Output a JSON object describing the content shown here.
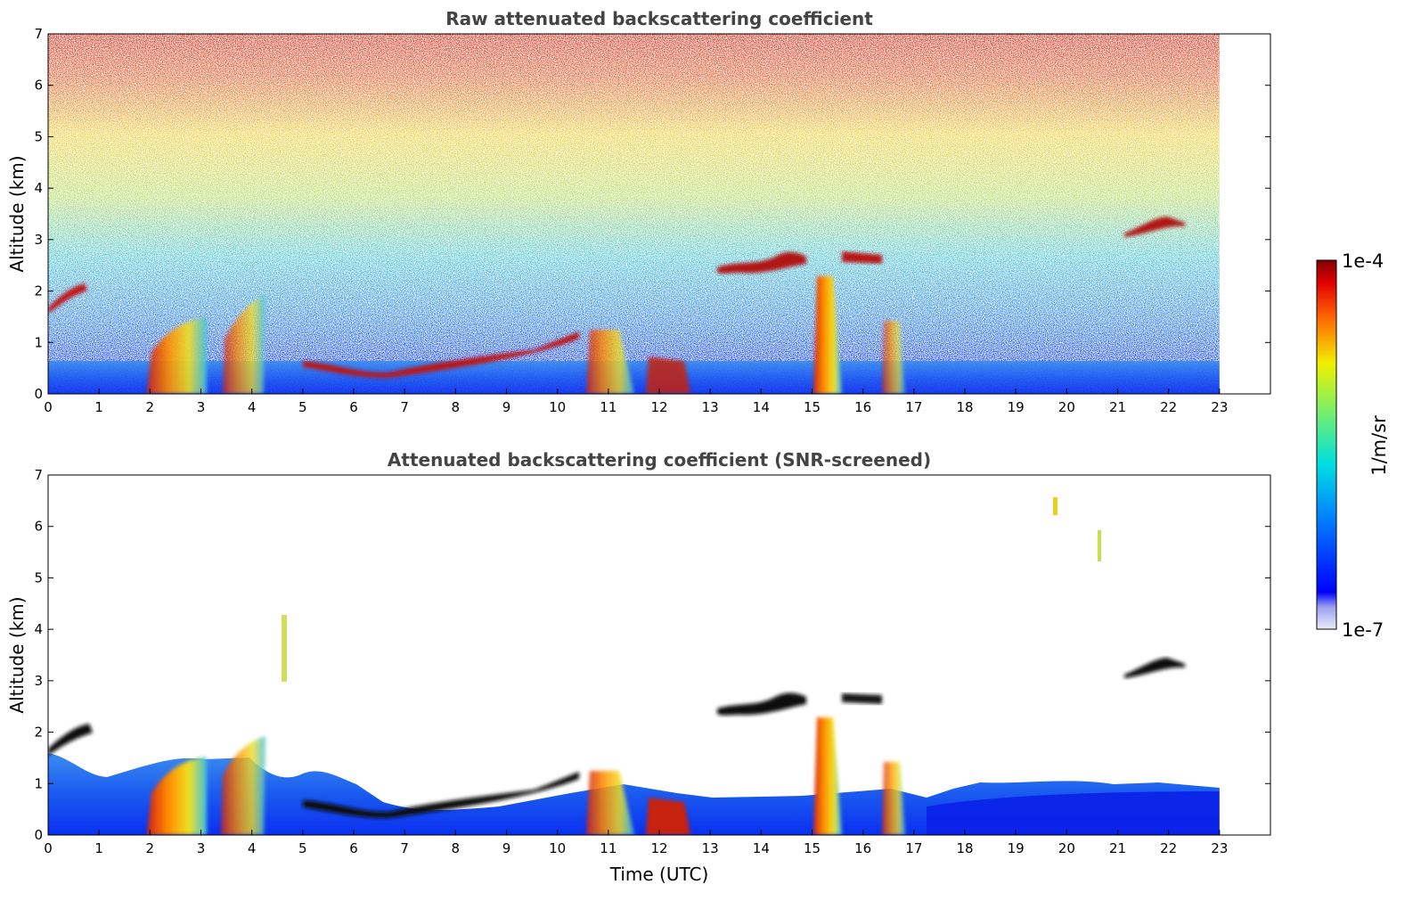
{
  "chart_data": [
    {
      "type": "heatmap",
      "title": "Raw attenuated backscattering coefficient",
      "xlabel": "",
      "ylabel": "Altitude (km)",
      "xlim": [
        0,
        24
      ],
      "ylim": [
        0,
        7
      ],
      "x_ticks": [
        0,
        1,
        2,
        3,
        4,
        5,
        6,
        7,
        8,
        9,
        10,
        11,
        12,
        13,
        14,
        15,
        16,
        17,
        18,
        19,
        20,
        21,
        22,
        23
      ],
      "y_ticks": [
        0,
        1,
        2,
        3,
        4,
        5,
        6,
        7
      ],
      "data_end_time": 23,
      "features": [
        {
          "name": "cloud-layer-early",
          "time": [
            0.0,
            0.9
          ],
          "altitude": [
            1.6,
            2.1
          ],
          "level": 0.9
        },
        {
          "name": "boundary-layer-top",
          "time": [
            6.3,
            9.8
          ],
          "altitude": [
            0.4,
            0.8
          ],
          "level": 0.85
        },
        {
          "name": "cloud-layer-midday",
          "time": [
            12.8,
            14.8
          ],
          "altitude": [
            2.3,
            2.8
          ],
          "level": 0.9
        },
        {
          "name": "cloud-layer-evening",
          "time": [
            21.1,
            22.4
          ],
          "altitude": [
            3.0,
            3.4
          ],
          "level": 0.9
        },
        {
          "name": "precipitation-column",
          "time": [
            15.0,
            15.6
          ],
          "altitude": [
            0.0,
            2.2
          ],
          "level": 0.95
        }
      ]
    },
    {
      "type": "heatmap",
      "title": "Attenuated backscattering coefficient (SNR-screened)",
      "xlabel": "Time (UTC)",
      "ylabel": "Altitude (km)",
      "xlim": [
        0,
        24
      ],
      "ylim": [
        0,
        7
      ],
      "x_ticks": [
        0,
        1,
        2,
        3,
        4,
        5,
        6,
        7,
        8,
        9,
        10,
        11,
        12,
        13,
        14,
        15,
        16,
        17,
        18,
        19,
        20,
        21,
        22,
        23
      ],
      "y_ticks": [
        0,
        1,
        2,
        3,
        4,
        5,
        6,
        7
      ],
      "data_end_time": 23
    }
  ],
  "colorbar": {
    "label": "1/m/sr",
    "max_label": "1e-4",
    "min_label": "1e-7",
    "colormap": "jet"
  }
}
